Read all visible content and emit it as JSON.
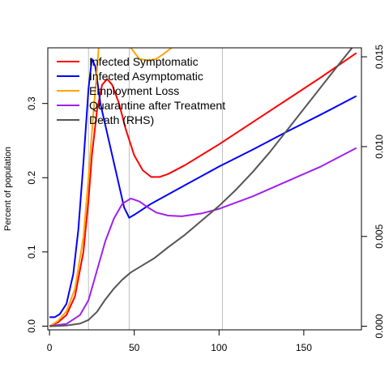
{
  "chart_data": {
    "type": "line",
    "ylabel": "Percent of population",
    "y2label": "",
    "xlim": [
      -1,
      184
    ],
    "ylim": [
      -0.005,
      0.375
    ],
    "y2lim": [
      -0.0002,
      0.0155
    ],
    "x_ticks": [
      0,
      50,
      100,
      150
    ],
    "y_ticks": [
      0.0,
      0.1,
      0.2,
      0.3
    ],
    "y_tick_labels": [
      "0.0",
      "0.1",
      "0.2",
      "0.3"
    ],
    "y2_ticks": [
      0.0,
      0.005,
      0.01,
      0.015
    ],
    "y2_tick_labels": [
      "0.000",
      "0.005",
      "0.010",
      "0.015"
    ],
    "vlines": [
      23,
      47,
      102
    ],
    "legend_position": "top-left",
    "grid": false,
    "series": [
      {
        "name": "Infected Symptomatic",
        "color": "#ff0000",
        "axis": "left",
        "points": [
          [
            0,
            0.0
          ],
          [
            5,
            0.005
          ],
          [
            10,
            0.015
          ],
          [
            15,
            0.04
          ],
          [
            20,
            0.1
          ],
          [
            23,
            0.17
          ],
          [
            25,
            0.23
          ],
          [
            28,
            0.29
          ],
          [
            31,
            0.325
          ],
          [
            34,
            0.333
          ],
          [
            37,
            0.325
          ],
          [
            41,
            0.3
          ],
          [
            45,
            0.265
          ],
          [
            50,
            0.23
          ],
          [
            55,
            0.21
          ],
          [
            60,
            0.201
          ],
          [
            65,
            0.201
          ],
          [
            70,
            0.205
          ],
          [
            80,
            0.217
          ],
          [
            100,
            0.245
          ],
          [
            120,
            0.275
          ],
          [
            140,
            0.305
          ],
          [
            160,
            0.335
          ],
          [
            181,
            0.368
          ]
        ]
      },
      {
        "name": "Infected Asymptomatic",
        "color": "#0000ff",
        "axis": "left",
        "points": [
          [
            0,
            0.012
          ],
          [
            3,
            0.012
          ],
          [
            6,
            0.016
          ],
          [
            10,
            0.03
          ],
          [
            14,
            0.07
          ],
          [
            17,
            0.13
          ],
          [
            20,
            0.22
          ],
          [
            23,
            0.32
          ],
          [
            25,
            0.36
          ],
          [
            27,
            0.35
          ],
          [
            30,
            0.3
          ],
          [
            34,
            0.26
          ],
          [
            38,
            0.22
          ],
          [
            41,
            0.19
          ],
          [
            44,
            0.16
          ],
          [
            47,
            0.146
          ],
          [
            50,
            0.15
          ],
          [
            60,
            0.165
          ],
          [
            80,
            0.19
          ],
          [
            100,
            0.215
          ],
          [
            120,
            0.238
          ],
          [
            140,
            0.262
          ],
          [
            160,
            0.285
          ],
          [
            181,
            0.31
          ]
        ]
      },
      {
        "name": "Employment Loss",
        "color": "#ffa500",
        "axis": "left",
        "points": [
          [
            0,
            0.0
          ],
          [
            5,
            0.007
          ],
          [
            10,
            0.02
          ],
          [
            15,
            0.05
          ],
          [
            20,
            0.12
          ],
          [
            23,
            0.2
          ],
          [
            26,
            0.29
          ],
          [
            28,
            0.345
          ],
          [
            29,
            0.375
          ],
          [
            null,
            null
          ],
          [
            48,
            0.375
          ],
          [
            53,
            0.36
          ],
          [
            58,
            0.358
          ],
          [
            63,
            0.36
          ],
          [
            68,
            0.368
          ],
          [
            72,
            0.375
          ]
        ]
      },
      {
        "name": "Quarantine after Treatment",
        "color": "#a020f0",
        "axis": "left",
        "points": [
          [
            0,
            0.0
          ],
          [
            10,
            0.003
          ],
          [
            18,
            0.015
          ],
          [
            23,
            0.035
          ],
          [
            28,
            0.075
          ],
          [
            33,
            0.115
          ],
          [
            38,
            0.145
          ],
          [
            43,
            0.165
          ],
          [
            48,
            0.172
          ],
          [
            53,
            0.168
          ],
          [
            58,
            0.16
          ],
          [
            63,
            0.153
          ],
          [
            70,
            0.149
          ],
          [
            78,
            0.148
          ],
          [
            90,
            0.152
          ],
          [
            100,
            0.158
          ],
          [
            120,
            0.175
          ],
          [
            140,
            0.195
          ],
          [
            160,
            0.215
          ],
          [
            181,
            0.24
          ]
        ]
      },
      {
        "name": "Death (RHS)",
        "color": "#555555",
        "axis": "right",
        "points": [
          [
            0,
            0.0
          ],
          [
            10,
            4e-05
          ],
          [
            18,
            0.00015
          ],
          [
            23,
            0.00035
          ],
          [
            28,
            0.0008
          ],
          [
            33,
            0.0015
          ],
          [
            38,
            0.0021
          ],
          [
            43,
            0.0026
          ],
          [
            48,
            0.003
          ],
          [
            55,
            0.0034
          ],
          [
            62,
            0.0038
          ],
          [
            70,
            0.0044
          ],
          [
            80,
            0.0051
          ],
          [
            90,
            0.0059
          ],
          [
            100,
            0.0067
          ],
          [
            110,
            0.0076
          ],
          [
            120,
            0.0086
          ],
          [
            130,
            0.0097
          ],
          [
            140,
            0.0109
          ],
          [
            150,
            0.0121
          ],
          [
            160,
            0.0133
          ],
          [
            170,
            0.0145
          ],
          [
            181,
            0.0158
          ]
        ]
      }
    ]
  }
}
